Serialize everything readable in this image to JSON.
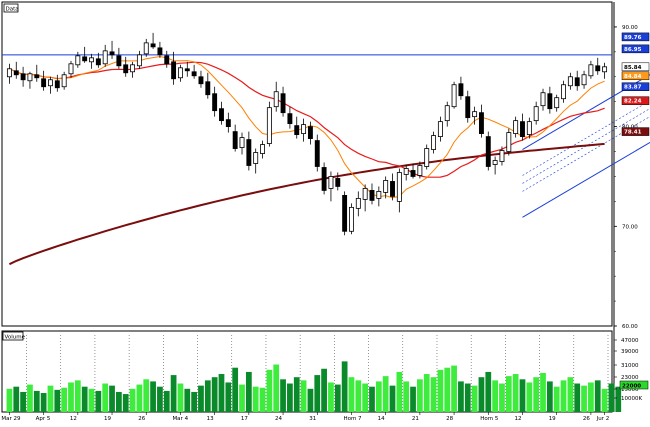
{
  "chart_data": [
    {
      "type": "candlestick",
      "panel": "price",
      "title_tag": "Data",
      "ylim": [
        60,
        92.5
      ],
      "y_ticks": [
        60.0,
        70.0,
        80.0,
        90.0
      ],
      "y_tick_labels": [
        "60.00",
        "70.00",
        "80.00",
        "90.00"
      ],
      "x_labels": [
        "Mar 29",
        "Apr 5",
        "12",
        "19",
        "26",
        "Mar 4",
        "13",
        "17",
        "24",
        "31",
        "Hom 7",
        "14",
        "21",
        "28",
        "Hom 5",
        "12",
        "19",
        "26",
        "Jur 2"
      ],
      "price_tags": [
        {
          "label": "89.76",
          "value": 89.0,
          "color": "#1a3fd8",
          "text_color": "#ffffff"
        },
        {
          "label": "86.95",
          "value": 87.8,
          "color": "#1a3fd8",
          "text_color": "#ffffff"
        },
        {
          "label": "85.84",
          "value": 86.0,
          "color": "#ffffff",
          "text_color": "#000000"
        },
        {
          "label": "84.84",
          "value": 85.1,
          "color": "#ff9a1a",
          "text_color": "#ffffff"
        },
        {
          "label": "83.87",
          "value": 84.0,
          "color": "#1a3fd8",
          "text_color": "#ffffff"
        },
        {
          "label": "82.24",
          "value": 82.6,
          "color": "#d81a1a",
          "text_color": "#ffffff"
        },
        {
          "label": "78.41",
          "value": 79.5,
          "color": "#7a0d0d",
          "text_color": "#ffffff"
        }
      ],
      "candles": [
        {
          "o": 85.0,
          "h": 86.3,
          "l": 84.3,
          "c": 85.8
        },
        {
          "o": 85.6,
          "h": 86.5,
          "l": 84.8,
          "c": 85.2
        },
        {
          "o": 85.3,
          "h": 86.0,
          "l": 84.0,
          "c": 84.7
        },
        {
          "o": 84.6,
          "h": 85.5,
          "l": 83.8,
          "c": 85.3
        },
        {
          "o": 85.2,
          "h": 86.2,
          "l": 84.5,
          "c": 84.9
        },
        {
          "o": 84.8,
          "h": 85.6,
          "l": 83.6,
          "c": 84.0
        },
        {
          "o": 84.1,
          "h": 85.0,
          "l": 83.3,
          "c": 84.7
        },
        {
          "o": 84.6,
          "h": 85.2,
          "l": 83.5,
          "c": 83.9
        },
        {
          "o": 84.0,
          "h": 85.5,
          "l": 83.7,
          "c": 85.2
        },
        {
          "o": 85.3,
          "h": 86.6,
          "l": 84.9,
          "c": 86.3
        },
        {
          "o": 86.2,
          "h": 87.5,
          "l": 85.9,
          "c": 87.1
        },
        {
          "o": 87.0,
          "h": 88.0,
          "l": 86.4,
          "c": 86.6
        },
        {
          "o": 86.5,
          "h": 87.3,
          "l": 85.8,
          "c": 86.9
        },
        {
          "o": 86.8,
          "h": 87.4,
          "l": 85.9,
          "c": 86.2
        },
        {
          "o": 86.3,
          "h": 88.2,
          "l": 86.0,
          "c": 87.6
        },
        {
          "o": 87.5,
          "h": 88.6,
          "l": 86.8,
          "c": 87.2
        },
        {
          "o": 87.1,
          "h": 87.9,
          "l": 85.8,
          "c": 86.1
        },
        {
          "o": 86.2,
          "h": 87.0,
          "l": 85.0,
          "c": 85.4
        },
        {
          "o": 85.5,
          "h": 86.5,
          "l": 84.9,
          "c": 86.2
        },
        {
          "o": 86.1,
          "h": 87.6,
          "l": 85.8,
          "c": 87.2
        },
        {
          "o": 87.3,
          "h": 88.8,
          "l": 87.0,
          "c": 88.4
        },
        {
          "o": 88.3,
          "h": 89.4,
          "l": 87.8,
          "c": 88.0
        },
        {
          "o": 87.9,
          "h": 88.5,
          "l": 86.9,
          "c": 87.2
        },
        {
          "o": 87.1,
          "h": 87.6,
          "l": 85.9,
          "c": 86.3
        },
        {
          "o": 86.5,
          "h": 87.5,
          "l": 84.2,
          "c": 84.8
        },
        {
          "o": 84.9,
          "h": 86.2,
          "l": 84.5,
          "c": 85.9
        },
        {
          "o": 85.8,
          "h": 86.5,
          "l": 85.0,
          "c": 85.6
        },
        {
          "o": 85.5,
          "h": 86.2,
          "l": 84.8,
          "c": 85.1
        },
        {
          "o": 85.0,
          "h": 85.6,
          "l": 83.9,
          "c": 84.3
        },
        {
          "o": 84.5,
          "h": 85.4,
          "l": 82.8,
          "c": 83.2
        },
        {
          "o": 83.3,
          "h": 84.0,
          "l": 81.0,
          "c": 81.6
        },
        {
          "o": 81.8,
          "h": 82.5,
          "l": 80.2,
          "c": 80.6
        },
        {
          "o": 80.7,
          "h": 81.4,
          "l": 79.4,
          "c": 80.0
        },
        {
          "o": 79.5,
          "h": 80.2,
          "l": 77.5,
          "c": 77.8
        },
        {
          "o": 77.9,
          "h": 79.4,
          "l": 77.2,
          "c": 78.9
        },
        {
          "o": 78.7,
          "h": 79.5,
          "l": 75.6,
          "c": 76.1
        },
        {
          "o": 76.3,
          "h": 77.8,
          "l": 75.3,
          "c": 77.4
        },
        {
          "o": 77.3,
          "h": 78.6,
          "l": 76.8,
          "c": 78.2
        },
        {
          "o": 78.3,
          "h": 82.5,
          "l": 78.0,
          "c": 81.9
        },
        {
          "o": 82.0,
          "h": 84.5,
          "l": 81.5,
          "c": 83.5
        },
        {
          "o": 83.3,
          "h": 84.0,
          "l": 81.0,
          "c": 81.4
        },
        {
          "o": 81.3,
          "h": 82.0,
          "l": 79.8,
          "c": 80.3
        },
        {
          "o": 80.1,
          "h": 81.0,
          "l": 78.8,
          "c": 79.2
        },
        {
          "o": 79.3,
          "h": 80.8,
          "l": 78.5,
          "c": 80.2
        },
        {
          "o": 80.0,
          "h": 80.5,
          "l": 78.2,
          "c": 78.8
        },
        {
          "o": 78.6,
          "h": 79.2,
          "l": 75.5,
          "c": 76.0
        },
        {
          "o": 75.9,
          "h": 76.4,
          "l": 73.2,
          "c": 73.6
        },
        {
          "o": 73.8,
          "h": 75.5,
          "l": 72.5,
          "c": 75.0
        },
        {
          "o": 74.8,
          "h": 75.4,
          "l": 73.6,
          "c": 74.0
        },
        {
          "o": 73.1,
          "h": 73.5,
          "l": 69.1,
          "c": 69.5
        },
        {
          "o": 69.5,
          "h": 72.3,
          "l": 69.2,
          "c": 71.9
        },
        {
          "o": 71.8,
          "h": 73.5,
          "l": 71.0,
          "c": 72.8
        },
        {
          "o": 72.7,
          "h": 74.2,
          "l": 71.5,
          "c": 73.8
        },
        {
          "o": 73.6,
          "h": 74.3,
          "l": 72.2,
          "c": 72.6
        },
        {
          "o": 72.8,
          "h": 74.0,
          "l": 72.0,
          "c": 73.5
        },
        {
          "o": 73.4,
          "h": 75.0,
          "l": 72.8,
          "c": 74.6
        },
        {
          "o": 74.5,
          "h": 75.3,
          "l": 72.6,
          "c": 73.0
        },
        {
          "o": 72.5,
          "h": 75.8,
          "l": 71.4,
          "c": 75.4
        },
        {
          "o": 75.2,
          "h": 76.2,
          "l": 74.6,
          "c": 75.8
        },
        {
          "o": 75.6,
          "h": 76.3,
          "l": 74.8,
          "c": 75.0
        },
        {
          "o": 75.1,
          "h": 76.5,
          "l": 74.8,
          "c": 76.1
        },
        {
          "o": 76.0,
          "h": 78.2,
          "l": 75.7,
          "c": 77.8
        },
        {
          "o": 77.7,
          "h": 79.5,
          "l": 77.3,
          "c": 79.1
        },
        {
          "o": 79.0,
          "h": 81.0,
          "l": 78.5,
          "c": 80.5
        },
        {
          "o": 80.6,
          "h": 82.5,
          "l": 80.0,
          "c": 82.1
        },
        {
          "o": 82.0,
          "h": 84.5,
          "l": 81.8,
          "c": 84.2
        },
        {
          "o": 84.3,
          "h": 85.0,
          "l": 82.7,
          "c": 83.1
        },
        {
          "o": 83.0,
          "h": 83.6,
          "l": 80.4,
          "c": 80.9
        },
        {
          "o": 81.0,
          "h": 82.0,
          "l": 80.2,
          "c": 81.5
        },
        {
          "o": 81.4,
          "h": 82.2,
          "l": 78.9,
          "c": 79.3
        },
        {
          "o": 79.0,
          "h": 79.5,
          "l": 75.6,
          "c": 76.0
        },
        {
          "o": 76.2,
          "h": 77.0,
          "l": 75.2,
          "c": 76.6
        },
        {
          "o": 76.5,
          "h": 78.0,
          "l": 76.1,
          "c": 77.6
        },
        {
          "o": 77.5,
          "h": 79.8,
          "l": 77.1,
          "c": 79.4
        },
        {
          "o": 79.3,
          "h": 81.0,
          "l": 78.9,
          "c": 80.6
        },
        {
          "o": 80.5,
          "h": 81.3,
          "l": 78.6,
          "c": 79.0
        },
        {
          "o": 79.2,
          "h": 80.9,
          "l": 78.8,
          "c": 80.5
        },
        {
          "o": 80.6,
          "h": 82.5,
          "l": 80.2,
          "c": 82.0
        },
        {
          "o": 82.1,
          "h": 83.8,
          "l": 81.6,
          "c": 83.4
        },
        {
          "o": 83.3,
          "h": 84.0,
          "l": 81.3,
          "c": 81.8
        },
        {
          "o": 81.9,
          "h": 83.2,
          "l": 81.5,
          "c": 82.9
        },
        {
          "o": 82.8,
          "h": 84.6,
          "l": 82.4,
          "c": 84.2
        },
        {
          "o": 84.1,
          "h": 85.4,
          "l": 83.7,
          "c": 85.0
        },
        {
          "o": 84.9,
          "h": 85.6,
          "l": 83.6,
          "c": 84.1
        },
        {
          "o": 84.2,
          "h": 85.6,
          "l": 83.8,
          "c": 85.2
        },
        {
          "o": 85.1,
          "h": 86.6,
          "l": 84.8,
          "c": 86.2
        },
        {
          "o": 86.1,
          "h": 86.9,
          "l": 85.2,
          "c": 85.6
        },
        {
          "o": 85.5,
          "h": 86.4,
          "l": 84.8,
          "c": 86.0
        }
      ],
      "overlays": [
        {
          "name": "",
          "color": "#ff8000",
          "period": 9
        },
        {
          "name": "",
          "color": "#e81c1c",
          "period": 20
        },
        {
          "name": "",
          "color": "#7a0d0d",
          "period": 100
        }
      ],
      "channel": {
        "x_start": 75,
        "x_end": 108,
        "lower_start": 70.9,
        "lower_end": 84.2,
        "upper_start": 77.7,
        "upper_end": 91.0,
        "color": "#1a3fd8"
      },
      "horizontal_line": {
        "value": 87.2,
        "color": "#1a3fd8"
      }
    },
    {
      "type": "bar",
      "panel": "volume",
      "title_tag": "Volume",
      "y_tick_labels": [
        "47000",
        "39000",
        "31000",
        "23000",
        "15000",
        "10000K"
      ],
      "volume_tag": {
        "label": "22000",
        "color": "#2bd92b"
      },
      "values": [
        22,
        24,
        19,
        26,
        20,
        18,
        25,
        21,
        23,
        28,
        30,
        24,
        22,
        20,
        27,
        25,
        19,
        17,
        22,
        26,
        31,
        29,
        24,
        20,
        35,
        27,
        22,
        19,
        25,
        30,
        33,
        36,
        28,
        42,
        26,
        38,
        24,
        23,
        40,
        45,
        31,
        27,
        33,
        30,
        22,
        35,
        41,
        28,
        26,
        48,
        33,
        30,
        27,
        24,
        29,
        34,
        25,
        38,
        29,
        24,
        31,
        36,
        33,
        40,
        42,
        44,
        29,
        27,
        25,
        33,
        38,
        30,
        27,
        34,
        36,
        31,
        28,
        33,
        37,
        29,
        24,
        30,
        33,
        27,
        25,
        28,
        30,
        22,
        27,
        24
      ],
      "up_color": "#3dec3d",
      "down_color": "#0a8a2a"
    }
  ]
}
